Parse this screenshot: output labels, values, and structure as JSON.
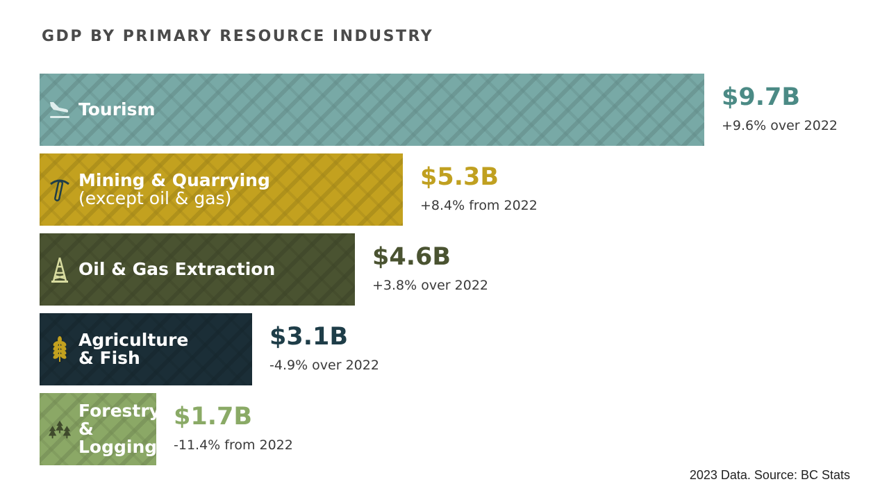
{
  "chart_data": {
    "type": "bar",
    "orientation": "horizontal",
    "title": "GDP BY PRIMARY RESOURCE INDUSTRY",
    "unit": "billion CAD",
    "xlim": [
      0,
      9.7
    ],
    "categories": [
      "Tourism",
      "Mining & Quarrying (except oil & gas)",
      "Oil & Gas Extraction",
      "Agriculture & Fish",
      "Forestry & Logging"
    ],
    "values": [
      9.7,
      5.3,
      4.6,
      3.1,
      1.7
    ],
    "bars": [
      {
        "label": "Tourism",
        "sublabel": "",
        "value": 9.7,
        "value_label": "$9.7B",
        "change_label": "+9.6% over 2022",
        "change_pct": 9.6,
        "icon": "airplane-landing-icon",
        "color": "#78a9a6",
        "text_color": "#4b8a85",
        "icon_color": "#dfeeed"
      },
      {
        "label": "Mining & Quarrying",
        "sublabel": "(except oil & gas)",
        "value": 5.3,
        "value_label": "$5.3B",
        "change_label": "+8.4% from 2022",
        "change_pct": 8.4,
        "icon": "pickaxe-icon",
        "color": "#c3a11f",
        "text_color": "#c0a020",
        "icon_color": "#1e3d48"
      },
      {
        "label": "Oil & Gas Extraction",
        "sublabel": "",
        "value": 4.6,
        "value_label": "$4.6B",
        "change_label": "+3.8% over 2022",
        "change_pct": 3.8,
        "icon": "oil-derrick-icon",
        "color": "#4a5331",
        "text_color": "#4a5331",
        "icon_color": "#d8dca0"
      },
      {
        "label": "Agriculture & Fish",
        "sublabel": "",
        "value": 3.1,
        "value_label": "$3.1B",
        "change_label": "-4.9% over 2022",
        "change_pct": -4.9,
        "icon": "wheat-icon",
        "color": "#1b2e37",
        "text_color": "#1e3d48",
        "icon_color": "#c3a11f"
      },
      {
        "label": "Forestry & Logging",
        "sublabel": "",
        "value": 1.7,
        "value_label": "$1.7B",
        "change_label": "-11.4% from 2022",
        "change_pct": -11.4,
        "icon": "trees-icon",
        "color": "#8ba866",
        "text_color": "#8aaa66",
        "icon_color": "#3f4a2c"
      }
    ],
    "source": "2023 Data. Source: BC Stats"
  }
}
